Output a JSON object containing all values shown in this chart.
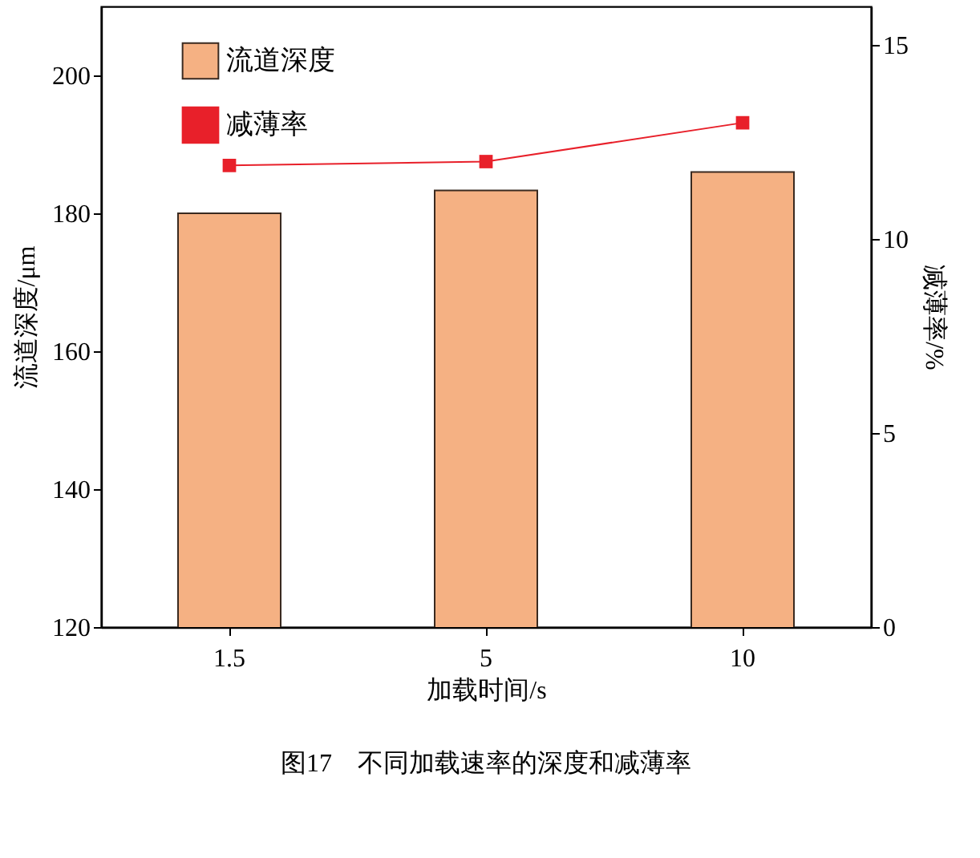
{
  "chart_data": {
    "type": "bar",
    "categories": [
      "1.5",
      "5",
      "10"
    ],
    "series": [
      {
        "name": "流道深度",
        "color": "#f5b183",
        "values": [
          180,
          183.3,
          186
        ]
      },
      {
        "name": "减薄率",
        "type": "line",
        "axis": "y2",
        "color": "#e8202a",
        "values": [
          11.9,
          12.0,
          13.0
        ]
      }
    ],
    "xlabel": "加载时间/s",
    "ylabel": "流道深度/μm",
    "y2label": "减薄率/%",
    "ylim": [
      120,
      210
    ],
    "yticks": [
      120,
      140,
      160,
      180,
      200
    ],
    "y2lim": [
      0,
      16
    ],
    "y2ticks": [
      0,
      5,
      10,
      15
    ],
    "legend": "top left",
    "marker": "square",
    "line_style": "solid",
    "grid": false,
    "annotations": [
      "图17　不同加载速率的深度和减薄率"
    ]
  }
}
